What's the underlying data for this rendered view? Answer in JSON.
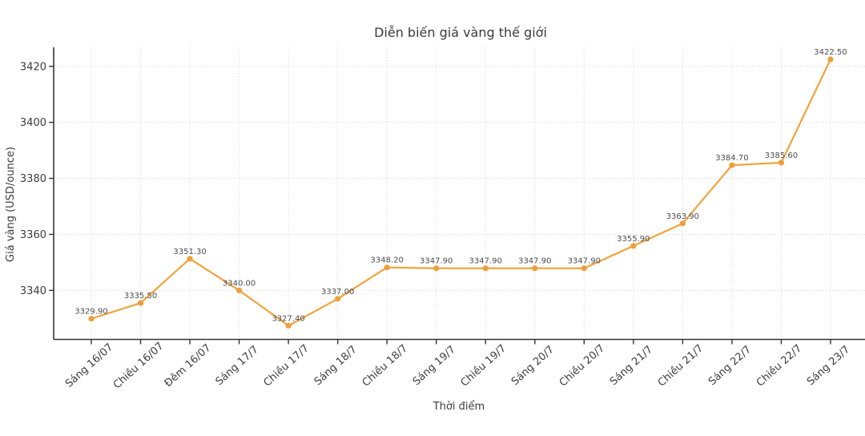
{
  "chart_data": {
    "type": "line",
    "title": "Diễn biến giá vàng thế giới",
    "xlabel": "Thời điểm",
    "ylabel": "Giá vàng (USD/ounce)",
    "categories": [
      "Sáng 16/07",
      "Chiều 16/07",
      "Đêm 16/07",
      "Sáng 17/7",
      "Chiều 17/7",
      "Sáng 18/7",
      "Chiều 18/7",
      "Sáng 19/7",
      "Chiều 19/7",
      "Sáng 20/7",
      "Chiều 20/7",
      "Sáng 21/7",
      "Chiều 21/7",
      "Sáng 22/7",
      "Chiều 22/7",
      "Sáng 23/7"
    ],
    "values": [
      3329.9,
      3335.5,
      3351.3,
      3340.0,
      3327.4,
      3337.0,
      3348.2,
      3347.9,
      3347.9,
      3347.9,
      3347.9,
      3355.9,
      3363.9,
      3384.7,
      3385.6,
      3422.5
    ],
    "point_labels": [
      "3329.90",
      "3335.50",
      "3351.30",
      "3340.00",
      "3327.40",
      "3337.00",
      "3348.20",
      "3347.90",
      "3347.90",
      "3347.90",
      "3347.90",
      "3355.90",
      "3363.90",
      "3384.70",
      "3385.60",
      "3422.50"
    ],
    "yticks": [
      3340,
      3360,
      3380,
      3400,
      3420
    ],
    "ylim": [
      3322.5,
      3426.8
    ],
    "grid": true,
    "legend_position": "none",
    "colors": {
      "line": "#F1A33F",
      "marker": "#EF9E39",
      "title_text": "#3B3B3B",
      "tick_text": "#3C3C3C",
      "point_label_text": "#4D4D4D",
      "grid": "#DCDCDC",
      "axis": "#333333",
      "background": "#FFFFFF"
    }
  }
}
